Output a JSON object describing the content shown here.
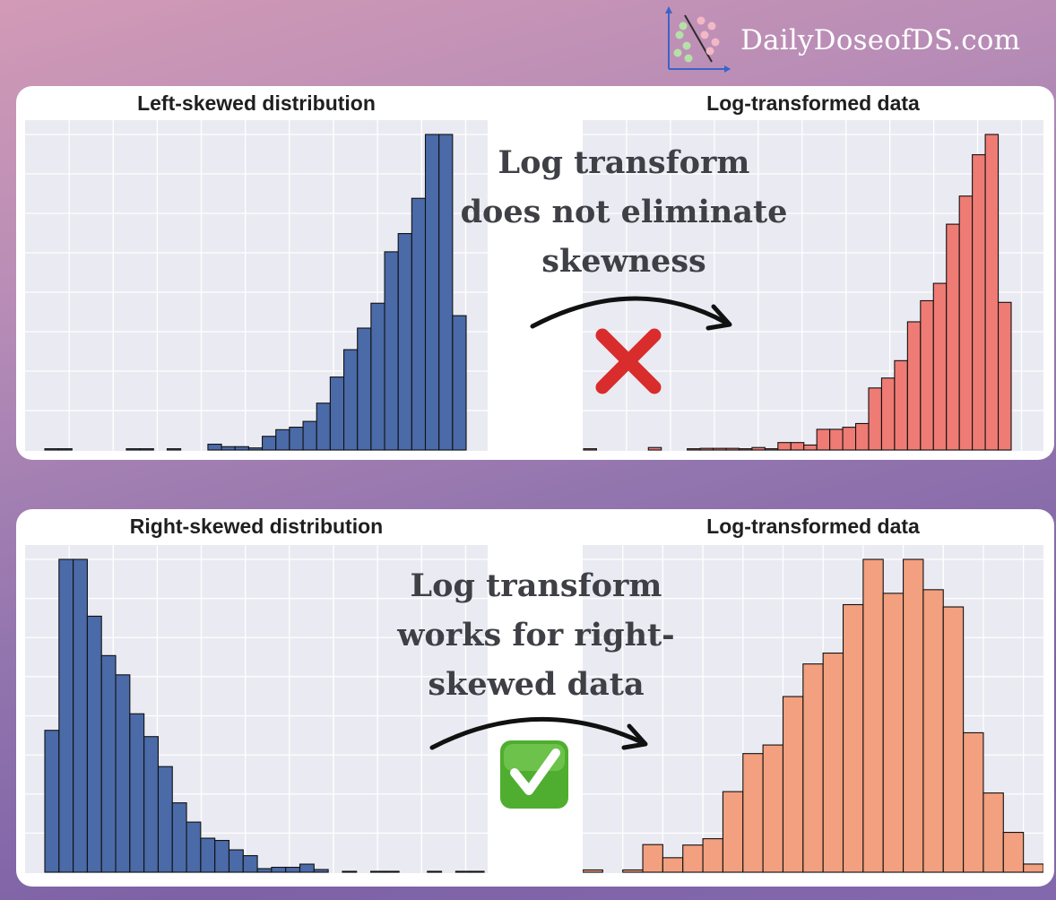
{
  "brand": {
    "name": "DailyDoseofDS.com",
    "logo_icon": "scatter-logo-icon"
  },
  "top_panel": {
    "note_lines": [
      "Log transform",
      "does not eliminate",
      "skewness"
    ],
    "verdict_icon": "red-cross-icon",
    "arrow_icon": "curved-arrow-icon"
  },
  "bottom_panel": {
    "note_lines": [
      "Log transform",
      "works for right-",
      "skewed data"
    ],
    "verdict_icon": "green-check-icon",
    "arrow_icon": "curved-arrow-icon"
  },
  "colors": {
    "left_skew_bars": "#4a6aa8",
    "log_left_bars": "#ef7b75",
    "right_skew_bars": "#4a6aa8",
    "log_right_bars": "#f2a07f",
    "plot_bg": "#eaeaf2",
    "grid": "#ffffff"
  },
  "chart_data": [
    {
      "id": "left-skewed",
      "type": "bar",
      "title": "Left-skewed distribution",
      "xlabel": "",
      "ylabel": "",
      "grid": true,
      "color_key": "left_skew_bars",
      "values": [
        0.3,
        0.3,
        0,
        0,
        0,
        0,
        0.3,
        0.3,
        0,
        0.3,
        0,
        0,
        1.4,
        0.8,
        0.8,
        0.5,
        3.3,
        4.9,
        5.5,
        6.9,
        11.3,
        17.6,
        24.2,
        29.4,
        35.4,
        47.8,
        52.2,
        60.7,
        76.1,
        76.1,
        32.4
      ],
      "ylim": [
        0,
        76.1
      ]
    },
    {
      "id": "log-of-left-skewed",
      "type": "bar",
      "title": "Log-transformed data",
      "xlabel": "",
      "ylabel": "",
      "grid": true,
      "color_key": "log_left_bars",
      "values": [
        0.3,
        0,
        0,
        0,
        0,
        0.6,
        0,
        0,
        0.3,
        0.4,
        0.4,
        0.4,
        0.3,
        0.6,
        0.3,
        1.8,
        1.8,
        1.2,
        5,
        5,
        5.5,
        6.4,
        15,
        17.4,
        21.6,
        31,
        36.1,
        40.3,
        54.6,
        61.4,
        71.4,
        76.3,
        35.7
      ],
      "ylim": [
        0,
        76.3
      ]
    },
    {
      "id": "right-skewed",
      "type": "bar",
      "title": "Right-skewed distribution",
      "xlabel": "",
      "ylabel": "",
      "grid": true,
      "color_key": "right_skew_bars",
      "values": [
        31.7,
        69.9,
        69.9,
        57.2,
        48.4,
        44.1,
        35.4,
        30.3,
        23.6,
        15.5,
        11.2,
        7.6,
        7.1,
        5,
        3.7,
        0.8,
        1.1,
        1.1,
        1.8,
        0.6,
        0,
        0.2,
        0,
        0.2,
        0.2,
        0,
        0,
        0.2,
        0,
        0.2,
        0.2
      ],
      "ylim": [
        0,
        69.9
      ]
    },
    {
      "id": "log-of-right-skewed",
      "type": "bar",
      "title": "Log-transformed data",
      "xlabel": "",
      "ylabel": "",
      "grid": true,
      "color_key": "log_right_bars",
      "values": [
        0.5,
        0,
        0.5,
        6.1,
        3.2,
        6,
        7.4,
        17.8,
        26.2,
        28.1,
        38.8,
        46,
        48.4,
        59.1,
        69.1,
        61.6,
        69.1,
        62.4,
        58.6,
        30.8,
        17.5,
        8.8,
        1.8
      ],
      "ylim": [
        0,
        69.1
      ]
    }
  ]
}
